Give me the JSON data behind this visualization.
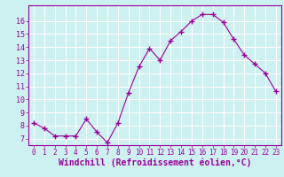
{
  "x": [
    0,
    1,
    2,
    3,
    4,
    5,
    6,
    7,
    8,
    9,
    10,
    11,
    12,
    13,
    14,
    15,
    16,
    17,
    18,
    19,
    20,
    21,
    22,
    23
  ],
  "y": [
    8.2,
    7.8,
    7.2,
    7.2,
    7.2,
    8.5,
    7.5,
    6.7,
    8.2,
    10.5,
    12.5,
    13.9,
    13.0,
    14.5,
    15.2,
    16.0,
    16.5,
    16.5,
    15.9,
    14.6,
    13.4,
    12.7,
    12.0,
    10.6
  ],
  "line_color": "#990099",
  "marker": "+",
  "marker_size": 4,
  "marker_linewidth": 1.0,
  "line_width": 0.8,
  "xlabel": "Windchill (Refroidissement éolien,°C)",
  "xlabel_fontsize": 7,
  "background_color": "#cdf0f0",
  "grid_color": "#ffffff",
  "tick_color": "#990099",
  "label_color": "#990099",
  "ylim": [
    6.5,
    17.2
  ],
  "xlim": [
    -0.5,
    23.5
  ],
  "yticks": [
    7,
    8,
    9,
    10,
    11,
    12,
    13,
    14,
    15,
    16
  ],
  "xtick_labels": [
    "0",
    "1",
    "2",
    "3",
    "4",
    "5",
    "6",
    "7",
    "8",
    "9",
    "10",
    "11",
    "12",
    "13",
    "14",
    "15",
    "16",
    "17",
    "18",
    "19",
    "20",
    "21",
    "22",
    "23"
  ],
  "tick_fontsize": 5.5,
  "ytick_fontsize": 6.0
}
